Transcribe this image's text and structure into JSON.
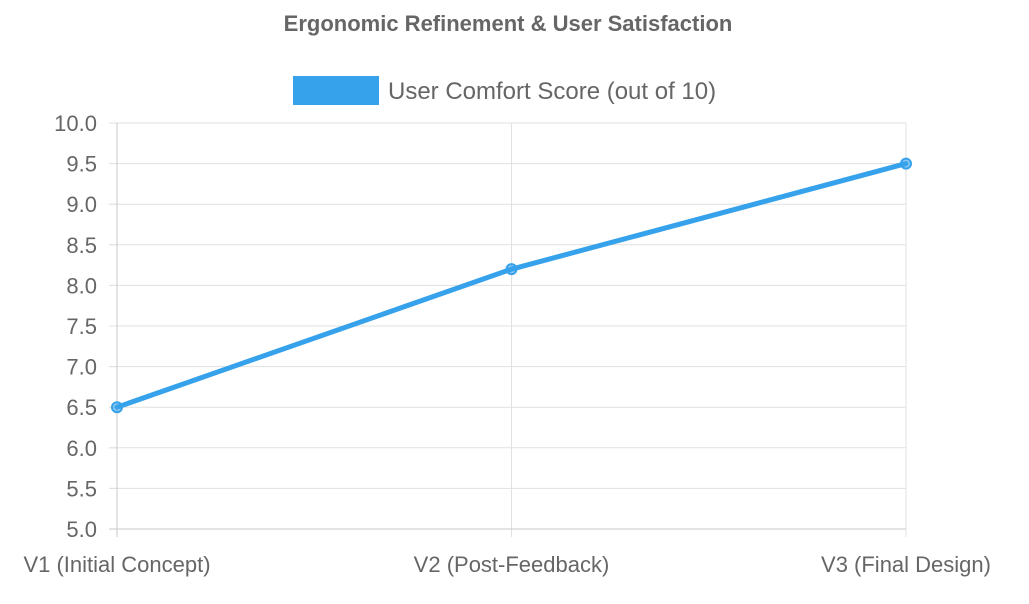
{
  "chart_data": {
    "type": "line",
    "title": "Ergonomic Refinement & User Satisfaction",
    "categories": [
      "V1 (Initial Concept)",
      "V2 (Post-Feedback)",
      "V3 (Final Design)"
    ],
    "series": [
      {
        "name": "User Comfort Score (out of 10)",
        "values": [
          6.5,
          8.2,
          9.5
        ],
        "color": "#36a2eb"
      }
    ],
    "ylim": [
      5.0,
      10.0
    ],
    "yticks": [
      "5.0",
      "5.5",
      "6.0",
      "6.5",
      "7.0",
      "7.5",
      "8.0",
      "8.5",
      "9.0",
      "9.5",
      "10.0"
    ],
    "xlabel": "",
    "ylabel": "",
    "grid": true,
    "legend_position": "top-center"
  }
}
